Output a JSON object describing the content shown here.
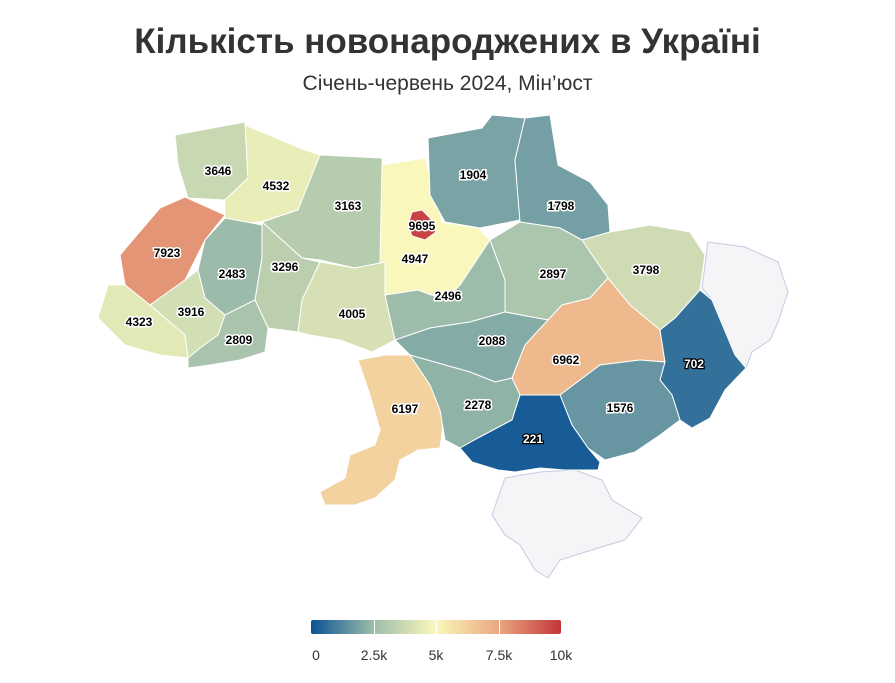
{
  "title": "Кількість новонароджених в Україні",
  "subtitle": "Січень-червень 2024, Мін’юст",
  "legend": {
    "min": 0,
    "max": 10000,
    "colors": [
      "#0a5394",
      "#9dbcaa",
      "#fbf8bb",
      "#eaa881",
      "#c3353a"
    ],
    "ticks": [
      "0",
      "2.5k",
      "5k",
      "7.5k",
      "10k"
    ]
  },
  "map": {
    "no_data_regions": [
      "Луганська область",
      "АР Крим"
    ],
    "regions": [
      {
        "name": "Волинська",
        "value": 3646
      },
      {
        "name": "Рівненська",
        "value": 4532
      },
      {
        "name": "Житомирська",
        "value": 3163
      },
      {
        "name": "Київська",
        "value": 4947
      },
      {
        "name": "Київ",
        "value": 9695
      },
      {
        "name": "Чернігівська",
        "value": 1904
      },
      {
        "name": "Сумська",
        "value": 1798
      },
      {
        "name": "Львівська",
        "value": 7923
      },
      {
        "name": "Тернопільська",
        "value": 2483
      },
      {
        "name": "Хмельницька",
        "value": 3296
      },
      {
        "name": "Вінницька",
        "value": 4005
      },
      {
        "name": "Черкаська",
        "value": 2496
      },
      {
        "name": "Полтавська",
        "value": 2897
      },
      {
        "name": "Харківська",
        "value": 3798
      },
      {
        "name": "Закарпатська",
        "value": 4323
      },
      {
        "name": "Івано-Франківська",
        "value": 3916
      },
      {
        "name": "Чернівецька",
        "value": 2809
      },
      {
        "name": "Кіровоградська",
        "value": 2088
      },
      {
        "name": "Дніпропетровська",
        "value": 6962
      },
      {
        "name": "Донецька",
        "value": 702
      },
      {
        "name": "Одеська",
        "value": 6197
      },
      {
        "name": "Миколаївська",
        "value": 2278
      },
      {
        "name": "Запорізька",
        "value": 1576
      },
      {
        "name": "Херсонська",
        "value": 221
      }
    ]
  }
}
